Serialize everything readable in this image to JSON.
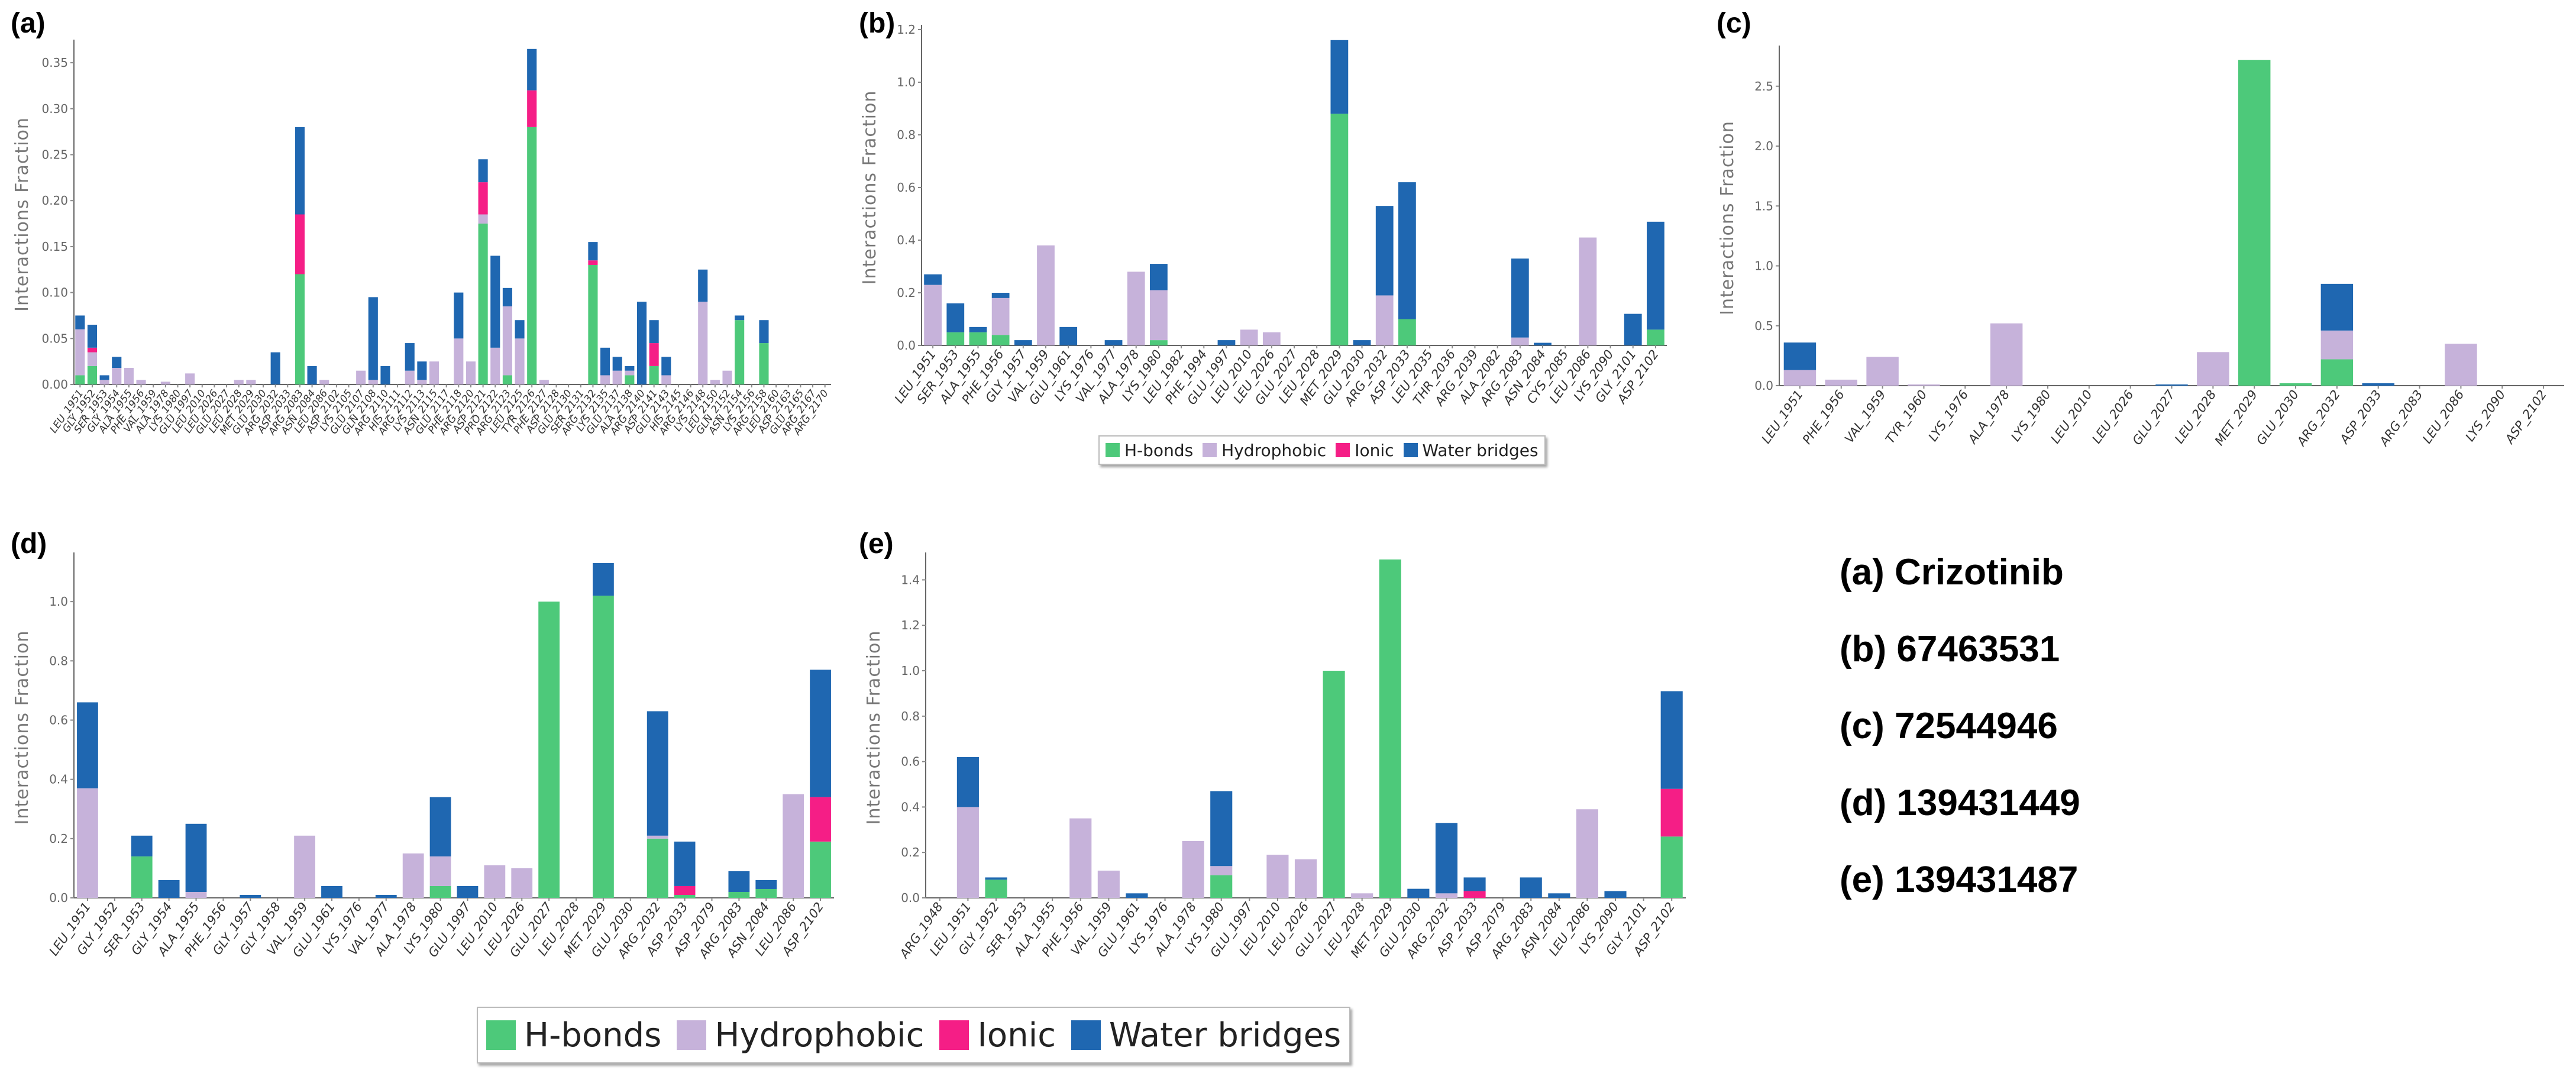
{
  "colors": {
    "hbonds": "#4dc97a",
    "hydrophobic": "#c6b2da",
    "ionic": "#f51e86",
    "water": "#1f67b1"
  },
  "series_names": [
    "H-bonds",
    "Hydrophobic",
    "Ionic",
    "Water bridges"
  ],
  "legend_small": {
    "hbonds": "H-bonds",
    "hydrophobic": "Hydrophobic",
    "ionic": "Ionic",
    "water": "Water bridges"
  },
  "legend_big": {
    "hbonds": "H-bonds",
    "hydrophobic": "Hydrophobic",
    "ionic": "Ionic",
    "water": "Water bridges"
  },
  "compounds": [
    "(a) Crizotinib",
    "(b) 67463531",
    "(c) 72544946",
    "(d) 139431449",
    "(e) 139431487"
  ],
  "chart_data": [
    {
      "type": "bar",
      "stacked": true,
      "panel_label": "(a)",
      "ylabel": "Interactions Fraction",
      "ylim": [
        0,
        0.37
      ],
      "yticks": [
        0.0,
        0.05,
        0.1,
        0.15,
        0.2,
        0.25,
        0.3,
        0.35
      ],
      "ytick_labels": [
        "0.00",
        "0.05",
        "0.10",
        "0.15",
        "0.20",
        "0.25",
        "0.30",
        "0.35"
      ],
      "categories": [
        "LEU_1951",
        "GLY_1952",
        "SER_1953",
        "GLY_1954",
        "ALA_1955",
        "PHE_1956",
        "VAL_1959",
        "ALA_1978",
        "LYS_1980",
        "GLU_1997",
        "LEU_2010",
        "LEU_2026",
        "GLU_2027",
        "LEU_2028",
        "MET_2029",
        "GLU_2030",
        "ARG_2032",
        "ASP_2033",
        "ARG_2083",
        "ASN_2084",
        "LEU_2086",
        "ASP_2102",
        "LYS_2105",
        "GLU_2107",
        "GLN_2108",
        "ARG_2110",
        "HIS_2111",
        "ARG_2112",
        "LYS_2113",
        "ASN_2115",
        "GLU_2117",
        "PHE_2118",
        "ARG_2120",
        "ASP_2121",
        "PRO_2122",
        "ARG_2123",
        "LEU_2125",
        "TYR_2126",
        "PHE_2127",
        "ASP_2128",
        "GLU_2130",
        "SER_2131",
        "ARG_2132",
        "LYS_2135",
        "GLU_2137",
        "ALA_2138",
        "ARG_2140",
        "ASP_2141",
        "GLU_2143",
        "HIS_2145",
        "ARG_2146",
        "LYS_2148",
        "LEU_2150",
        "GLN_2152",
        "ASN_2154",
        "LYS_2156",
        "ARG_2158",
        "LEU_2160",
        "ASP_2163",
        "GLU_2165",
        "ARG_2167",
        "ARG_2170"
      ],
      "series": [
        {
          "name": "H-bonds",
          "values": [
            0.01,
            0.02,
            0.0,
            0.0,
            0.0,
            0.0,
            0.0,
            0.0,
            0.0,
            0.0,
            0.0,
            0.0,
            0.0,
            0.0,
            0.0,
            0.0,
            0.0,
            0.0,
            0.12,
            0.0,
            0.0,
            0.0,
            0.0,
            0.0,
            0.0,
            0.0,
            0.0,
            0.0,
            0.0,
            0.0,
            0.0,
            0.0,
            0.0,
            0.175,
            0.0,
            0.01,
            0.0,
            0.28,
            0.0,
            0.0,
            0.0,
            0.0,
            0.13,
            0.0,
            0.0,
            0.01,
            0.0,
            0.02,
            0.0,
            0.0,
            0.0,
            0.0,
            0.0,
            0.0,
            0.07,
            0.0,
            0.045,
            0.0,
            0.0,
            0.0,
            0.0,
            0.0
          ]
        },
        {
          "name": "Hydrophobic",
          "values": [
            0.05,
            0.015,
            0.005,
            0.018,
            0.018,
            0.005,
            0.0,
            0.003,
            0.0,
            0.012,
            0.0,
            0.0,
            0.0,
            0.005,
            0.005,
            0.0,
            0.0,
            0.0,
            0.0,
            0.0,
            0.005,
            0.0,
            0.0,
            0.015,
            0.005,
            0.0,
            0.0,
            0.015,
            0.005,
            0.025,
            0.0,
            0.05,
            0.025,
            0.01,
            0.04,
            0.075,
            0.05,
            0.0,
            0.005,
            0.0,
            0.0,
            0.0,
            0.0,
            0.01,
            0.015,
            0.005,
            0.0,
            0.0,
            0.01,
            0.0,
            0.0,
            0.09,
            0.005,
            0.015,
            0.0,
            0.0,
            0.0,
            0.0,
            0.0,
            0.0,
            0.0,
            0.0
          ]
        },
        {
          "name": "Ionic",
          "values": [
            0.0,
            0.005,
            0.0,
            0.0,
            0.0,
            0.0,
            0.0,
            0.0,
            0.0,
            0.0,
            0.0,
            0.0,
            0.0,
            0.0,
            0.0,
            0.0,
            0.0,
            0.0,
            0.065,
            0.0,
            0.0,
            0.0,
            0.0,
            0.0,
            0.0,
            0.0,
            0.0,
            0.0,
            0.0,
            0.0,
            0.0,
            0.0,
            0.0,
            0.035,
            0.0,
            0.0,
            0.0,
            0.04,
            0.0,
            0.0,
            0.0,
            0.0,
            0.005,
            0.0,
            0.0,
            0.0,
            0.0,
            0.025,
            0.0,
            0.0,
            0.0,
            0.0,
            0.0,
            0.0,
            0.0,
            0.0,
            0.0,
            0.0,
            0.0,
            0.0,
            0.0,
            0.0
          ]
        },
        {
          "name": "Water bridges",
          "values": [
            0.015,
            0.025,
            0.005,
            0.012,
            0.0,
            0.0,
            0.0,
            0.0,
            0.0,
            0.0,
            0.0,
            0.0,
            0.0,
            0.0,
            0.0,
            0.0,
            0.035,
            0.0,
            0.095,
            0.02,
            0.0,
            0.0,
            0.0,
            0.0,
            0.09,
            0.02,
            0.0,
            0.03,
            0.02,
            0.0,
            0.0,
            0.05,
            0.0,
            0.025,
            0.1,
            0.02,
            0.02,
            0.045,
            0.0,
            0.0,
            0.0,
            0.0,
            0.02,
            0.03,
            0.015,
            0.005,
            0.09,
            0.025,
            0.02,
            0.0,
            0.0,
            0.035,
            0.0,
            0.0,
            0.005,
            0.0,
            0.025,
            0.0,
            0.0,
            0.0,
            0.0,
            0.0
          ]
        }
      ]
    },
    {
      "type": "bar",
      "stacked": true,
      "panel_label": "(b)",
      "ylabel": "Interactions Fraction",
      "ylim": [
        0,
        1.2
      ],
      "yticks": [
        0,
        0.2,
        0.4,
        0.6,
        0.8,
        1.0,
        1.2
      ],
      "ytick_labels": [
        "0.0",
        "0.2",
        "0.4",
        "0.6",
        "0.8",
        "1.0",
        "1.2"
      ],
      "categories": [
        "LEU_1951",
        "SER_1953",
        "ALA_1955",
        "PHE_1956",
        "GLY_1957",
        "VAL_1959",
        "GLU_1961",
        "LYS_1976",
        "VAL_1977",
        "ALA_1978",
        "LYS_1980",
        "LEU_1982",
        "PHE_1994",
        "GLU_1997",
        "LEU_2010",
        "LEU_2026",
        "GLU_2027",
        "LEU_2028",
        "MET_2029",
        "GLU_2030",
        "ARG_2032",
        "ASP_2033",
        "LEU_2035",
        "THR_2036",
        "ARG_2039",
        "ALA_2082",
        "ARG_2083",
        "ASN_2084",
        "CYS_2085",
        "LEU_2086",
        "LYS_2090",
        "GLY_2101",
        "ASP_2102"
      ],
      "series": [
        {
          "name": "H-bonds",
          "values": [
            0.0,
            0.05,
            0.05,
            0.04,
            0.0,
            0.0,
            0.0,
            0.0,
            0.0,
            0.0,
            0.02,
            0.0,
            0.0,
            0.0,
            0.0,
            0.0,
            0.0,
            0.0,
            0.88,
            0.0,
            0.0,
            0.1,
            0.0,
            0.0,
            0.0,
            0.0,
            0.0,
            0.0,
            0.0,
            0.0,
            0.0,
            0.0,
            0.06
          ]
        },
        {
          "name": "Hydrophobic",
          "values": [
            0.23,
            0.0,
            0.0,
            0.14,
            0.0,
            0.38,
            0.0,
            0.0,
            0.0,
            0.28,
            0.19,
            0.0,
            0.0,
            0.0,
            0.06,
            0.05,
            0.0,
            0.0,
            0.0,
            0.0,
            0.19,
            0.0,
            0.0,
            0.0,
            0.0,
            0.0,
            0.03,
            0.0,
            0.0,
            0.41,
            0.0,
            0.0,
            0.0
          ]
        },
        {
          "name": "Ionic",
          "values": [
            0.0,
            0.0,
            0.0,
            0.0,
            0.0,
            0.0,
            0.0,
            0.0,
            0.0,
            0.0,
            0.0,
            0.0,
            0.0,
            0.0,
            0.0,
            0.0,
            0.0,
            0.0,
            0.0,
            0.0,
            0.0,
            0.0,
            0.0,
            0.0,
            0.0,
            0.0,
            0.0,
            0.0,
            0.0,
            0.0,
            0.0,
            0.0,
            0.0
          ]
        },
        {
          "name": "Water bridges",
          "values": [
            0.04,
            0.11,
            0.02,
            0.02,
            0.02,
            0.0,
            0.07,
            0.0,
            0.02,
            0.0,
            0.1,
            0.0,
            0.0,
            0.02,
            0.0,
            0.0,
            0.0,
            0.0,
            0.28,
            0.02,
            0.34,
            0.52,
            0.0,
            0.0,
            0.0,
            0.0,
            0.3,
            0.01,
            0.0,
            0.0,
            0.0,
            0.12,
            0.41
          ]
        }
      ]
    },
    {
      "type": "bar",
      "stacked": true,
      "panel_label": "(c)",
      "ylabel": "Interactions Fraction",
      "ylim": [
        0,
        2.8
      ],
      "yticks": [
        0,
        0.5,
        1.0,
        1.5,
        2.0,
        2.5
      ],
      "ytick_labels": [
        "0.0",
        "0.5",
        "1.0",
        "1.5",
        "2.0",
        "2.5"
      ],
      "categories": [
        "LEU_1951",
        "PHE_1956",
        "VAL_1959",
        "TYR_1960",
        "LYS_1976",
        "ALA_1978",
        "LYS_1980",
        "LEU_2010",
        "LEU_2026",
        "GLU_2027",
        "LEU_2028",
        "MET_2029",
        "GLU_2030",
        "ARG_2032",
        "ASP_2033",
        "ARG_2083",
        "LEU_2086",
        "LYS_2090",
        "ASP_2102"
      ],
      "series": [
        {
          "name": "H-bonds",
          "values": [
            0.0,
            0.0,
            0.0,
            0.0,
            0.0,
            0.0,
            0.0,
            0.0,
            0.0,
            0.0,
            0.0,
            2.72,
            0.02,
            0.22,
            0.0,
            0.0,
            0.0,
            0.0,
            0.0
          ]
        },
        {
          "name": "Hydrophobic",
          "values": [
            0.13,
            0.05,
            0.24,
            0.01,
            0.0,
            0.52,
            0.0,
            0.0,
            0.0,
            0.0,
            0.28,
            0.0,
            0.0,
            0.24,
            0.0,
            0.0,
            0.35,
            0.0,
            0.0
          ]
        },
        {
          "name": "Ionic",
          "values": [
            0.0,
            0.0,
            0.0,
            0.0,
            0.0,
            0.0,
            0.0,
            0.0,
            0.0,
            0.0,
            0.0,
            0.0,
            0.0,
            0.0,
            0.0,
            0.0,
            0.0,
            0.0,
            0.0
          ]
        },
        {
          "name": "Water bridges",
          "values": [
            0.23,
            0.0,
            0.0,
            0.0,
            0.0,
            0.0,
            0.0,
            0.0,
            0.0,
            0.01,
            0.0,
            0.0,
            0.0,
            0.39,
            0.02,
            0.0,
            0.0,
            0.0,
            0.0
          ]
        }
      ]
    },
    {
      "type": "bar",
      "stacked": true,
      "panel_label": "(d)",
      "ylabel": "Interactions Fraction",
      "ylim": [
        0,
        1.15
      ],
      "yticks": [
        0,
        0.2,
        0.4,
        0.6,
        0.8,
        1.0
      ],
      "ytick_labels": [
        "0.0",
        "0.2",
        "0.4",
        "0.6",
        "0.8",
        "1.0"
      ],
      "categories": [
        "LEU_1951",
        "GLY_1952",
        "SER_1953",
        "GLY_1954",
        "ALA_1955",
        "PHE_1956",
        "GLY_1957",
        "GLY_1958",
        "VAL_1959",
        "GLU_1961",
        "LYS_1976",
        "VAL_1977",
        "ALA_1978",
        "LYS_1980",
        "GLU_1997",
        "LEU_2010",
        "LEU_2026",
        "GLU_2027",
        "LEU_2028",
        "MET_2029",
        "GLU_2030",
        "ARG_2032",
        "ASP_2033",
        "ASP_2079",
        "ARG_2083",
        "ASN_2084",
        "LEU_2086",
        "ASP_2102"
      ],
      "series": [
        {
          "name": "H-bonds",
          "values": [
            0.0,
            0.0,
            0.14,
            0.0,
            0.0,
            0.0,
            0.0,
            0.0,
            0.0,
            0.0,
            0.0,
            0.0,
            0.0,
            0.04,
            0.0,
            0.0,
            0.0,
            1.0,
            0.0,
            1.02,
            0.0,
            0.2,
            0.01,
            0.0,
            0.02,
            0.03,
            0.0,
            0.19
          ]
        },
        {
          "name": "Hydrophobic",
          "values": [
            0.37,
            0.0,
            0.0,
            0.0,
            0.02,
            0.0,
            0.0,
            0.0,
            0.21,
            0.0,
            0.0,
            0.0,
            0.15,
            0.1,
            0.0,
            0.11,
            0.1,
            0.0,
            0.0,
            0.0,
            0.0,
            0.01,
            0.0,
            0.0,
            0.0,
            0.0,
            0.35,
            0.0
          ]
        },
        {
          "name": "Ionic",
          "values": [
            0.0,
            0.0,
            0.0,
            0.0,
            0.0,
            0.0,
            0.0,
            0.0,
            0.0,
            0.0,
            0.0,
            0.0,
            0.0,
            0.0,
            0.0,
            0.0,
            0.0,
            0.0,
            0.0,
            0.0,
            0.0,
            0.0,
            0.03,
            0.0,
            0.0,
            0.0,
            0.0,
            0.15
          ]
        },
        {
          "name": "Water bridges",
          "values": [
            0.29,
            0.0,
            0.07,
            0.06,
            0.23,
            0.0,
            0.01,
            0.0,
            0.0,
            0.04,
            0.0,
            0.01,
            0.0,
            0.2,
            0.04,
            0.0,
            0.0,
            0.0,
            0.0,
            0.11,
            0.0,
            0.42,
            0.15,
            0.0,
            0.07,
            0.03,
            0.0,
            0.43
          ]
        }
      ]
    },
    {
      "type": "bar",
      "stacked": true,
      "panel_label": "(e)",
      "ylabel": "Interactions Fraction",
      "ylim": [
        0,
        1.5
      ],
      "yticks": [
        0,
        0.2,
        0.4,
        0.6,
        0.8,
        1.0,
        1.2,
        1.4
      ],
      "ytick_labels": [
        "0.0",
        "0.2",
        "0.4",
        "0.6",
        "0.8",
        "1.0",
        "1.2",
        "1.4"
      ],
      "categories": [
        "ARG_1948",
        "LEU_1951",
        "GLY_1952",
        "SER_1953",
        "ALA_1955",
        "PHE_1956",
        "VAL_1959",
        "GLU_1961",
        "LYS_1976",
        "ALA_1978",
        "LYS_1980",
        "GLU_1997",
        "LEU_2010",
        "LEU_2026",
        "GLU_2027",
        "LEU_2028",
        "MET_2029",
        "GLU_2030",
        "ARG_2032",
        "ASP_2033",
        "ASP_2079",
        "ARG_2083",
        "ASN_2084",
        "LEU_2086",
        "LYS_2090",
        "GLY_2101",
        "ASP_2102"
      ],
      "series": [
        {
          "name": "H-bonds",
          "values": [
            0.0,
            0.0,
            0.08,
            0.0,
            0.0,
            0.0,
            0.0,
            0.0,
            0.0,
            0.0,
            0.1,
            0.0,
            0.0,
            0.0,
            1.0,
            0.0,
            1.49,
            0.0,
            0.0,
            0.0,
            0.0,
            0.0,
            0.0,
            0.0,
            0.0,
            0.0,
            0.27
          ]
        },
        {
          "name": "Hydrophobic",
          "values": [
            0.0,
            0.4,
            0.0,
            0.0,
            0.0,
            0.35,
            0.12,
            0.0,
            0.0,
            0.25,
            0.04,
            0.0,
            0.19,
            0.17,
            0.0,
            0.02,
            0.0,
            0.0,
            0.02,
            0.0,
            0.0,
            0.0,
            0.0,
            0.39,
            0.0,
            0.0,
            0.0
          ]
        },
        {
          "name": "Ionic",
          "values": [
            0.0,
            0.0,
            0.0,
            0.0,
            0.0,
            0.0,
            0.0,
            0.0,
            0.0,
            0.0,
            0.0,
            0.0,
            0.0,
            0.0,
            0.0,
            0.0,
            0.0,
            0.0,
            0.0,
            0.03,
            0.0,
            0.0,
            0.0,
            0.0,
            0.0,
            0.0,
            0.21
          ]
        },
        {
          "name": "Water bridges",
          "values": [
            0.0,
            0.22,
            0.01,
            0.0,
            0.0,
            0.0,
            0.0,
            0.02,
            0.0,
            0.0,
            0.33,
            0.0,
            0.0,
            0.0,
            0.0,
            0.0,
            0.0,
            0.04,
            0.31,
            0.06,
            0.0,
            0.09,
            0.02,
            0.0,
            0.03,
            0.0,
            0.43
          ]
        }
      ]
    }
  ]
}
